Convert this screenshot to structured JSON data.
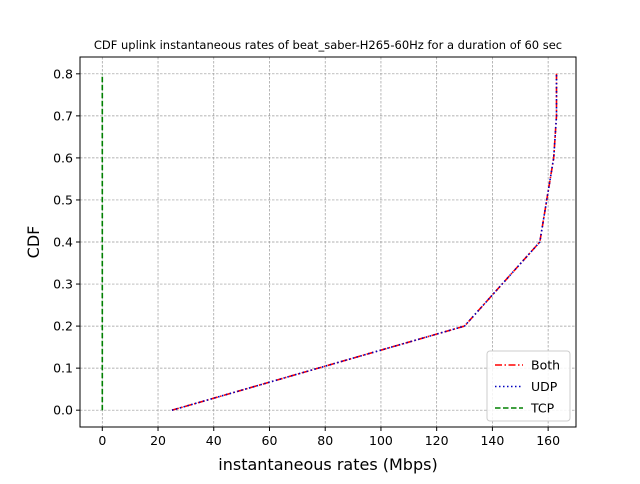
{
  "chart_data": {
    "type": "line",
    "title": "CDF uplink instantaneous rates of beat_saber-H265-60Hz for a duration of 60 sec",
    "xlabel": "instantaneous rates (Mbps)",
    "ylabel": "CDF",
    "xlim": [
      -8,
      170
    ],
    "ylim": [
      -0.04,
      0.84
    ],
    "xticks": [
      0,
      20,
      40,
      60,
      80,
      100,
      120,
      140,
      160
    ],
    "yticks": [
      0.0,
      0.1,
      0.2,
      0.3,
      0.4,
      0.5,
      0.6,
      0.7,
      0.8
    ],
    "xtick_labels": [
      "0",
      "20",
      "40",
      "60",
      "80",
      "100",
      "120",
      "140",
      "160"
    ],
    "ytick_labels": [
      "0.0",
      "0.1",
      "0.2",
      "0.3",
      "0.4",
      "0.5",
      "0.6",
      "0.7",
      "0.8"
    ],
    "grid": true,
    "legend_position": "bottom-right",
    "series": [
      {
        "name": "Both",
        "color": "#ff0000",
        "linestyle": "dashdot",
        "x": [
          25,
          130,
          157,
          162,
          163,
          163
        ],
        "y": [
          0.0,
          0.2,
          0.4,
          0.6,
          0.7,
          0.8
        ]
      },
      {
        "name": "UDP",
        "color": "#0000bf",
        "linestyle": "dotted",
        "x": [
          25,
          130,
          157,
          162,
          163,
          163
        ],
        "y": [
          0.0,
          0.2,
          0.4,
          0.6,
          0.7,
          0.8
        ]
      },
      {
        "name": "TCP",
        "color": "#008000",
        "linestyle": "dashed",
        "x": [
          0,
          0
        ],
        "y": [
          0.0,
          0.8
        ]
      }
    ]
  }
}
